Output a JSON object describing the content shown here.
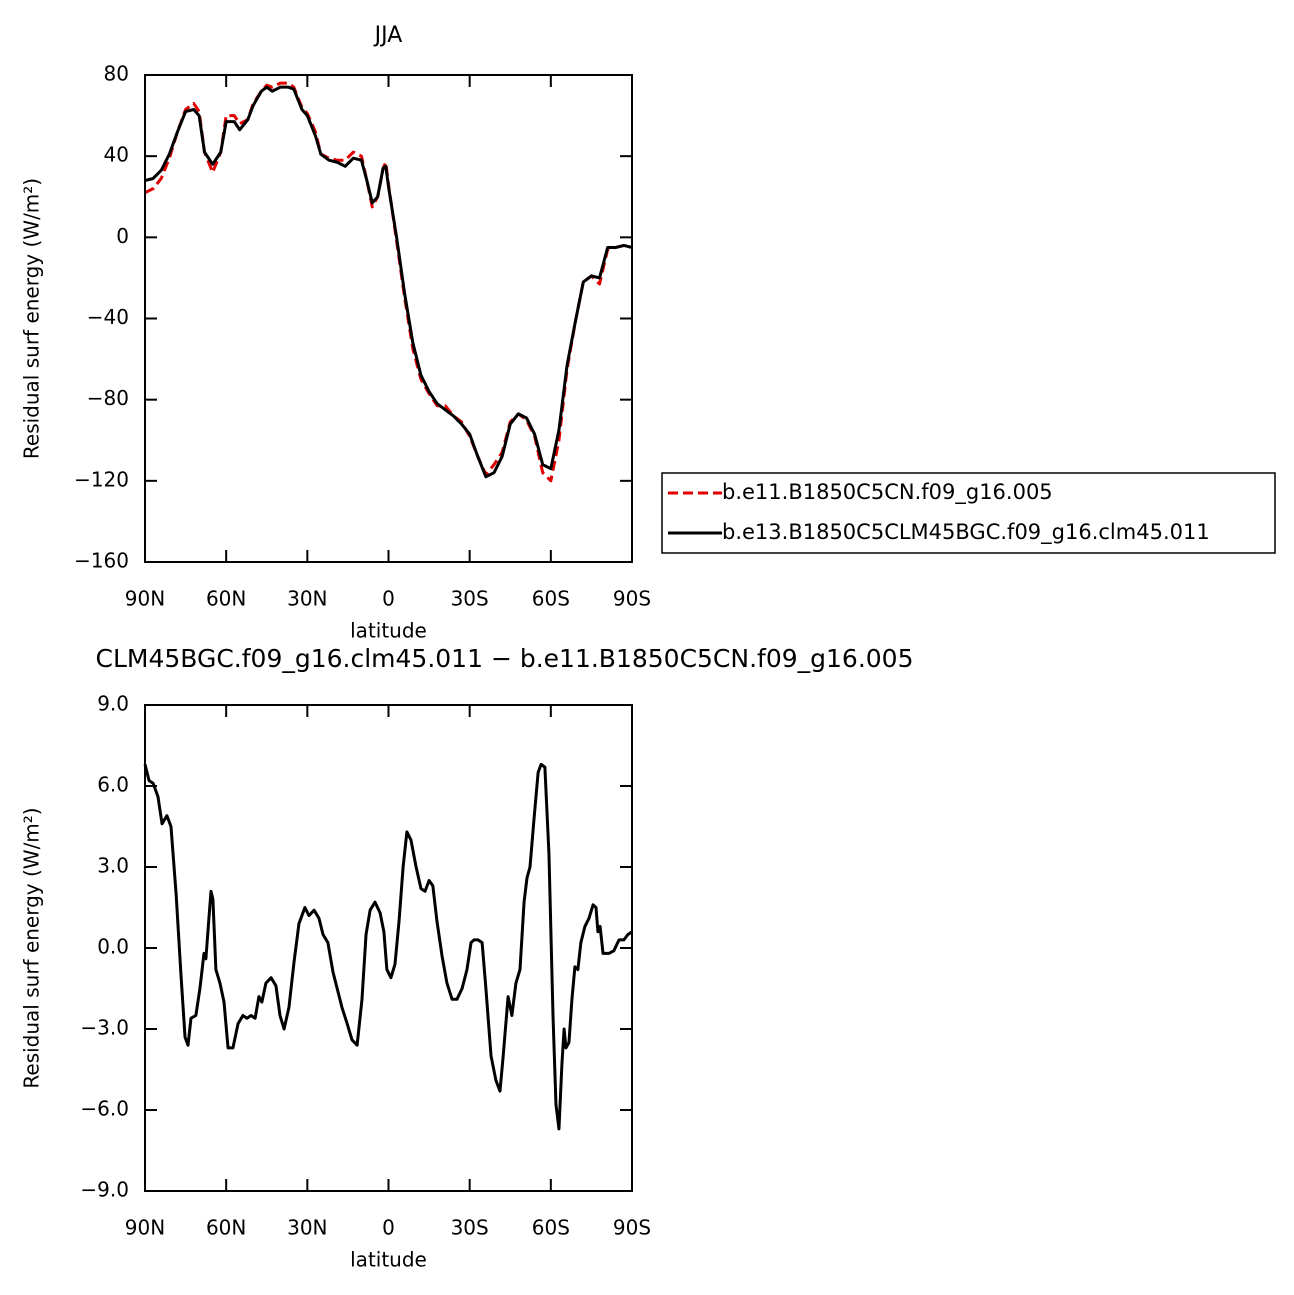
{
  "chart_data": [
    {
      "type": "line",
      "title": "JJA",
      "xlabel": "latitude",
      "ylabel": "Residual surf energy (W/m²)",
      "x": [
        90,
        87,
        84,
        81,
        78,
        75,
        72,
        70,
        68,
        65,
        62,
        60,
        57,
        55,
        52,
        50,
        47,
        45,
        43,
        40,
        37,
        35,
        32,
        30,
        27,
        25,
        22,
        19,
        16,
        13,
        10,
        8,
        6,
        4,
        2,
        1,
        0,
        -3,
        -6,
        -9,
        -12,
        -15,
        -18,
        -21,
        -24,
        -27,
        -30,
        -33,
        -36,
        -39,
        -42,
        -45,
        -48,
        -51,
        -54,
        -57,
        -60,
        -63,
        -66,
        -69,
        -72,
        -75,
        -78,
        -81,
        -84,
        -87,
        -90
      ],
      "series": [
        {
          "name": "b.e11.B1850C5CN.f09_g16.005",
          "color": "#e00000",
          "linestyle": "dashed",
          "values": [
            22,
            24,
            29,
            39,
            52,
            63,
            66,
            62,
            42,
            32,
            42,
            60,
            60,
            56,
            58,
            66,
            72,
            75,
            74,
            76,
            76,
            74,
            64,
            61,
            52,
            41,
            39,
            38,
            38,
            42,
            40,
            28,
            15,
            20,
            34,
            37,
            26,
            -2,
            -30,
            -55,
            -70,
            -77,
            -83,
            -83,
            -88,
            -91,
            -98,
            -108,
            -117,
            -112,
            -106,
            -91,
            -87,
            -90,
            -98,
            -116,
            -120,
            -100,
            -65,
            -42,
            -22,
            -19,
            -23,
            -6,
            -5,
            -4,
            -5
          ]
        },
        {
          "name": "b.e13.B1850C5CLM45BGC.f09_g16.clm45.011",
          "color": "#000000",
          "linestyle": "solid",
          "values": [
            28,
            29,
            33,
            41,
            52,
            62,
            63,
            60,
            42,
            36,
            42,
            57,
            57,
            53,
            58,
            65,
            72,
            74,
            72,
            74,
            74,
            73,
            63,
            60,
            50,
            41,
            38,
            37,
            35,
            39,
            38,
            28,
            17,
            20,
            34,
            35,
            25,
            0,
            -28,
            -52,
            -68,
            -76,
            -82,
            -85,
            -88,
            -92,
            -97,
            -108,
            -118,
            -116,
            -108,
            -92,
            -87,
            -89,
            -97,
            -112,
            -114,
            -95,
            -63,
            -42,
            -22,
            -19,
            -20,
            -5,
            -5,
            -4,
            -5
          ]
        }
      ],
      "xlim": [
        90,
        -90
      ],
      "xticks": [
        {
          "value": 90,
          "label": "90N"
        },
        {
          "value": 60,
          "label": "60N"
        },
        {
          "value": 30,
          "label": "30N"
        },
        0,
        {
          "value": -30,
          "label": "30S"
        },
        {
          "value": -60,
          "label": "60S"
        },
        {
          "value": -90,
          "label": "90S"
        }
      ],
      "ylim": [
        -160,
        80
      ],
      "yticks": [
        80,
        40,
        0,
        {
          "value": -40,
          "label": "−40"
        },
        {
          "value": -80,
          "label": "−80"
        },
        {
          "value": -120,
          "label": "−120"
        },
        {
          "value": -160,
          "label": "−160"
        }
      ],
      "legend": "right"
    },
    {
      "type": "line",
      "title": "CLM45BGC.f09_g16.clm45.011 − b.e11.B1850C5CN.f09_g16.005",
      "xlabel": "latitude",
      "ylabel": "Residual surf energy (W/m²)",
      "x": [
        90,
        88.5,
        87.0,
        85.2,
        83.7,
        81.9,
        80.4,
        78.5,
        76.7,
        75.2,
        74.1,
        73.0,
        71.2,
        69.7,
        68.2,
        67.5,
        66.3,
        65.6,
        64.9,
        63.8,
        62.3,
        60.8,
        59.3,
        57.5,
        55.6,
        53.8,
        52.3,
        50.8,
        49.3,
        47.9,
        46.8,
        45.3,
        43.4,
        41.6,
        40.1,
        38.6,
        36.8,
        34.9,
        33.1,
        30.9,
        29.4,
        27.5,
        25.7,
        24.2,
        22.4,
        20.5,
        17.2,
        15.3,
        13.5,
        11.6,
        9.8,
        8.3,
        6.8,
        5.0,
        3.1,
        1.7,
        0.6,
        -0.9,
        -2.4,
        -3.9,
        -5.4,
        -6.8,
        -8.3,
        -10.2,
        -12.0,
        -13.5,
        -15.0,
        -16.4,
        -17.9,
        -19.8,
        -21.6,
        -23.5,
        -25.3,
        -27.2,
        -29.0,
        -30.5,
        -31.6,
        -33.1,
        -34.6,
        -36.0,
        -37.9,
        -39.7,
        -41.2,
        -42.3,
        -44.2,
        -45.6,
        -47.1,
        -48.6,
        -50.1,
        -51.2,
        -52.3,
        -53.8,
        -55.3,
        -56.4,
        -57.8,
        -59.3,
        -60.8,
        -61.9,
        -63.0,
        -64.1,
        -64.9,
        -65.6,
        -66.7,
        -67.8,
        -68.9,
        -70.0,
        -71.1,
        -72.6,
        -74.1,
        -75.6,
        -76.7,
        -77.4,
        -78.2,
        -79.3,
        -80.4,
        -81.5,
        -83.3,
        -85.2,
        -87.0,
        -88.5,
        -90
      ],
      "series": [
        {
          "color": "#000000",
          "linestyle": "solid",
          "values": [
            6.8,
            6.2,
            6.1,
            5.6,
            4.6,
            4.9,
            4.5,
            2.0,
            -1.0,
            -3.3,
            -3.6,
            -2.6,
            -2.5,
            -1.5,
            -0.2,
            -0.4,
            1.2,
            2.1,
            1.8,
            -0.8,
            -1.3,
            -2.0,
            -3.7,
            -3.7,
            -2.8,
            -2.5,
            -2.6,
            -2.5,
            -2.6,
            -1.8,
            -2.0,
            -1.3,
            -1.1,
            -1.4,
            -2.5,
            -3.0,
            -2.2,
            -0.5,
            0.9,
            1.5,
            1.2,
            1.4,
            1.1,
            0.5,
            0.2,
            -0.9,
            -2.2,
            -2.8,
            -3.4,
            -3.6,
            -1.9,
            0.5,
            1.4,
            1.7,
            1.3,
            0.6,
            -0.8,
            -1.1,
            -0.6,
            1.0,
            3.0,
            4.3,
            4.0,
            3.0,
            2.2,
            2.1,
            2.5,
            2.3,
            1.0,
            -0.3,
            -1.3,
            -1.9,
            -1.9,
            -1.5,
            -0.8,
            0.2,
            0.3,
            0.3,
            0.2,
            -1.5,
            -4.0,
            -4.9,
            -5.3,
            -4.1,
            -1.8,
            -2.5,
            -1.3,
            -0.8,
            1.7,
            2.6,
            3.0,
            4.8,
            6.5,
            6.8,
            6.7,
            3.5,
            -2.5,
            -5.8,
            -6.7,
            -4.3,
            -3.0,
            -3.7,
            -3.5,
            -1.9,
            -0.7,
            -0.8,
            0.2,
            0.8,
            1.1,
            1.6,
            1.5,
            0.6,
            0.8,
            -0.2,
            -0.2,
            -0.2,
            -0.1,
            0.3,
            0.3,
            0.5,
            0.6
          ]
        }
      ],
      "xlim": [
        90,
        -90
      ],
      "xticks": [
        {
          "value": 90,
          "label": "90N"
        },
        {
          "value": 60,
          "label": "60N"
        },
        {
          "value": 30,
          "label": "30N"
        },
        0,
        {
          "value": -30,
          "label": "30S"
        },
        {
          "value": -60,
          "label": "60S"
        },
        {
          "value": -90,
          "label": "90S"
        }
      ],
      "ylim": [
        -9,
        9
      ],
      "yticks": [
        {
          "value": 9,
          "label": "9.0"
        },
        {
          "value": 6,
          "label": "6.0"
        },
        {
          "value": 3,
          "label": "3.0"
        },
        {
          "value": 0,
          "label": "0.0"
        },
        {
          "value": -3,
          "label": "−3.0"
        },
        {
          "value": -6,
          "label": "−6.0"
        },
        {
          "value": -9,
          "label": "−9.0"
        }
      ]
    }
  ]
}
